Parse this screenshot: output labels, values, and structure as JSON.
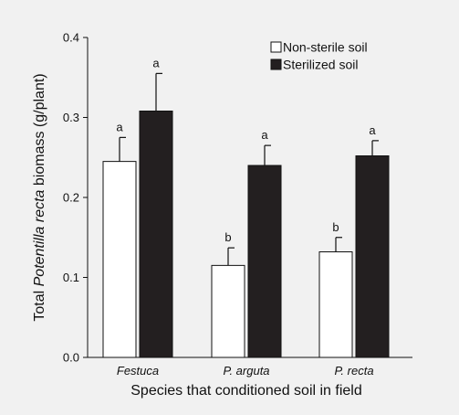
{
  "chart_data": {
    "type": "bar",
    "categories": [
      "Festuca",
      "P. arguta",
      "P. recta"
    ],
    "series": [
      {
        "name": "Non-sterile soil",
        "values": [
          0.245,
          0.115,
          0.132
        ],
        "errors": [
          0.03,
          0.022,
          0.018
        ],
        "letters": [
          "a",
          "b",
          "b"
        ],
        "color": "#ffffff"
      },
      {
        "name": "Sterilized soil",
        "values": [
          0.308,
          0.24,
          0.252
        ],
        "errors": [
          0.047,
          0.025,
          0.019
        ],
        "letters": [
          "a",
          "a",
          "a"
        ],
        "color": "#231f20"
      }
    ],
    "ylim": [
      0,
      0.4
    ],
    "yticks": [
      "0.0",
      "0.1",
      "0.2",
      "0.3",
      "0.4"
    ],
    "ylabel_parts": [
      "Total ",
      "Potentilla recta",
      " biomass (g/plant)"
    ],
    "xlabel": "Species that conditioned soil in field",
    "legend_position": "top-right",
    "grid": false
  }
}
